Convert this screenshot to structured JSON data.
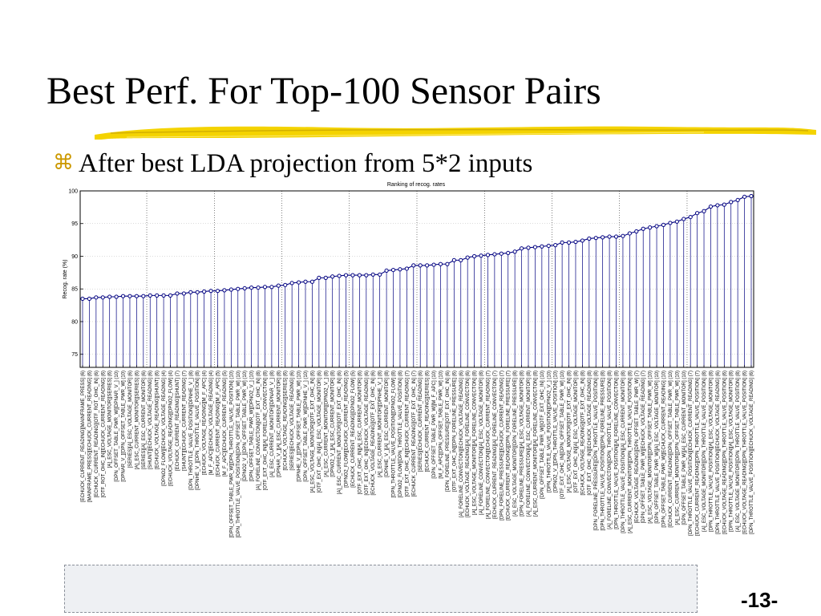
{
  "slide": {
    "title": "Best Perf. For Top-100 Sensor Pairs",
    "bullet": "After best LDA projection from 5*2 inputs",
    "bullet_icon": "command-key-icon",
    "page_number": "-13-",
    "accent_color": "#e8c400",
    "bullet_color": "#cc9900"
  },
  "chart_data": {
    "type": "line",
    "title": "Ranking of recog. rates",
    "xlabel": "",
    "ylabel": "Recog. rate (%)",
    "ylim": [
      73,
      100
    ],
    "yticks": [
      75,
      80,
      85,
      90,
      95,
      100
    ],
    "grid": true,
    "markers": "circle",
    "stems": true,
    "series_color": "#000080",
    "categories": [
      "[ECHUCK_CURRENT_READING][MAINFRAME_PRESS] (6)",
      "[MAINFRAME_PRESS][ECHUCK_CURRENT_READING] (6)",
      "[ECHUCK_CURRENT_READING][OTF_ROT_OHC_IN] (6)",
      "[OTF_ROT_OHC_IN][ECHUCK_CURRENT_READING] (6)",
      "[A]_ESC_VOLTAGE_MONITOR][SERIES] (6)",
      "[DPN_OFFSET_TABLE_PWR_W][DPNAR_V_] (10)",
      "[DPNAR_V_][DPN_OFFSET_TABLE_PWR_W] (10)",
      "[SERIES][A]_ESC_VOLTAGE_MONITOR] (6)",
      "[A]_ESC_CURRENT_MONITOR][SERIES] (6)",
      "[SERIES][A]_ESC_CURRENT_MONITOR] (6)",
      "[SHUNT][ECHUCK_VOLTAGE_READING] (6)",
      "[ECHUCK_VOLTAGE_READING][SHUNT] (6)",
      "[DPNO2_FLOW][ECHUCK_VOLTAGE_READING] (4)",
      "[ECHUCK_VOLTAGE_READING][DPNO2_FLOW] (4)",
      "[ECHUCK_CURRENT_READING][SHUNT] (7)",
      "[SHUNT][ECHUCK_CURRENT_READING] (7)",
      "[DPN_THROTTLE_VALVE_POSITION][DPNHE_V_] (8)",
      "[DPNHE_V_][DPN_THROTTLE_VALVE_POSITION] (8)",
      "[ECHUCK_VOLTAGE_READING][M_F_APC] (4)",
      "[M_F_APC][ECHUCK_VOLTAGE_READING] (4)",
      "[ECHUCK_CURRENT_READING][M_F_APC] (5)",
      "[M_F_APC][ECHUCK_CURRENT_READING] (5)",
      "[DPN_OFFSET_TABLE_PWR_W][DPN_THROTTLE_VALVE_POSITION] (10)",
      "[DPN_THROTTLE_VALVE_POSITION][DPN_OFFSET_TABLE_PWR_W] (10)",
      "[DPNO2_V_][DPN_OFFSET_TABLE_PWR_W] (10)",
      "[DPN_OFFSET_TABLE_PWR_W][DPNO2_V_] (10)",
      "[A]_FORELINE_CONVECTON][OTF_EXT_OHC_IN] (8)",
      "[OTF_EXT_OHC_IN][A]_FORELINE_CONVECTON] (8)",
      "[A]_ESC_CURRENT_MONITOR][DPNAR_V_] (8)",
      "[DPNAR_V_][A]_ESC_CURRENT_MONITOR] (8)",
      "[ECHUCK_VOLTAGE_READING][SERIES] (6)",
      "[SERIES][ECHUCK_VOLTAGE_READING] (6)",
      "[DPNHE_V_][DPN_OFFSET_TABLE_PWR_W] (10)",
      "[DPN_OFFSET_TABLE_PWR_W][DPNHE_V_] (10)",
      "[A]_ESC_VOLTAGE_MONITOR][OTF_EXT_OHC_IN] (6)",
      "[OTF_EXT_OHC_IN][A]_ESC_VOLTAGE_MONITOR] (6)",
      "[A]_ESC_CURRENT_MONITOR][DPNO2_V_] (8)",
      "[DPNO2_V_][A]_ESC_CURRENT_MONITOR] (8)",
      "[A]_ESC_CURRENT_MONITOR][OTF_EXT_OHC_IN] (6)",
      "[DPNO2_FLOW][ECHUCK_CURRENT_READING] (5)",
      "[ECHUCK_CURRENT_READING][DPNO2_FLOW] (5)",
      "[OTF_EXT_OHC_IN][A]_ESC_CURRENT_MONITOR] (6)",
      "[OTF_EXT_OHC_IN][ECHUCK_VOLTAGE_READING] (6)",
      "[ECHUCK_VOLTAGE_READING][OTF_EXT_OHC_IN] (6)",
      "[A]_ESC_CURRENT_MONITOR][DPNHE_V_] (8)",
      "[DPNHE_V_][A]_ESC_CURRENT_MONITOR] (8)",
      "[DPN_THROTTLE_VALVE_POSITION][DPNO2_FLOW] (8)",
      "[DPNO2_FLOW][DPN_THROTTLE_VALVE_POSITION] (8)",
      "[OTF_EXT_OHC_IN][ECHUCK_CURRENT_READING] (7)",
      "[ECHUCK_CURRENT_READING][OTF_EXT_OHC_IN] (7)",
      "[SERIES][ECHUCK_CURRENT_READING] (6)",
      "[ECHUCK_CURRENT_READING][SERIES] (6)",
      "[DPN_OFFSET_TABLE_PWR_W][M_F_APC] (10)",
      "[M_F_APC][DPN_OFFSET_TABLE_PWR_W] (10)",
      "[DPN_FORELINE_PRESSURE][OTF_EXT_OHC_IN] (6)",
      "[OTF_EXT_OHC_IN][DPN_FORELINE_PRESSURE] (6)",
      "[A]_FORELINE_CONVECTON][ECHUCK_VOLTAGE_READING] (6)",
      "[ECHUCK_VOLTAGE_READING][A]_FORELINE_CONVECTON] (6)",
      "[A]_ESC_VOLTAGE_MONITOR][A]_FORELINE_CONVECTON] (8)",
      "[A]_FORELINE_CONVECTON][A]_ESC_VOLTAGE_MONITOR] (8)",
      "[A]_FORELINE_CONVECTON][ECHUCK_CURRENT_READING] (7)",
      "[ECHUCK_CURRENT_READING][A]_FORELINE_CONVECTON] (7)",
      "[DPN_FORELINE_PRESSURE][ECHUCK_CURRENT_READING] (7)",
      "[ECHUCK_CURRENT_READING][DPN_FORELINE_PRESSURE] (7)",
      "[A]_ESC_VOLTAGE_MONITOR][DPN_FORELINE_PRESSURE] (8)",
      "[DPN_FORELINE_PRESSURE][A]_ESC_VOLTAGE_MONITOR] (8)",
      "[A]_FORELINE_CONVECTON][A]_ESC_CURRENT_MONITOR] (8)",
      "[A]_ESC_CURRENT_MONITOR][A]_FORELINE_CONVECTON] (8)",
      "[DPN_OFFSET_TABLE_PWR_W][OTF_EXT_OHC_IN] (10)",
      "[DPN_THROTTLE_VALVE_POSITION][DPNO2_V_] (10)",
      "[DPNO2_V_][DPN_THROTTLE_VALVE_POSITION] (10)",
      "[OTF_EXT_OHC_IN][DPN_OFFSET_TABLE_PWR_W] (10)",
      "[A]_ESC_VOLTAGE_MONITOR][OTF_EXT_OHC_IN] (8)",
      "[OTF_EXT_OHC_IN][A]_ESC_VOLTAGE_MONITOR] (8)",
      "[ECHUCK_VOLTAGE_READING][OTF_EXT_OHC_IN] (8)",
      "[OTF_EXT_OHC_IN][ECHUCK_VOLTAGE_READING] (8)",
      "[DPN_FORELINE_PRESSURE][DPN_THROTTLE_VALVE_POSITION] (8)",
      "[DPN_THROTTLE_VALVE_POSITION][DPN_FORELINE_PRESSURE] (8)",
      "[A]_FORELINE_CONVECTON][DPN_THROTTLE_VALVE_POSITION] (8)",
      "[DPN_THROTTLE_VALVE_POSITION][A]_FORELINE_CONVECTON] (8)",
      "[DPN_THROTTLE_VALVE_POSITION][A]_ESC_CURRENT_MONITOR] (8)",
      "[A]_ESC_CURRENT_MONITOR][DPN_THROTTLE_VALVE_POSITION] (8)",
      "[ECHUCK_VOLTAGE_READING][DPN_OFFSET_TABLE_PWR_W] (7)",
      "[DPN_OFFSET_TABLE_PWR_W][ECHUCK_VOLTAGE_READING] (7)",
      "[A]_ESC_VOLTAGE_MONITOR][DPN_OFFSET_TABLE_PWR_W] (10)",
      "[DPN_OFFSET_TABLE_PWR_W][A]_ESC_VOLTAGE_MONITOR] (10)",
      "[DPN_OFFSET_TABLE_PWR_W][ECHUCK_CURRENT_READING] (10)",
      "[ECHUCK_CURRENT_READING][DPN_OFFSET_TABLE_PWR_W] (10)",
      "[A]_ESC_CURRENT_MONITOR][DPN_OFFSET_TABLE_PWR_W] (10)",
      "[DPN_OFFSET_TABLE_PWR_W][A]_ESC_CURRENT_MONITOR] (10)",
      "[DPN_THROTTLE_VALVE_POSITION][ECHUCK_CURRENT_READING] (7)",
      "[ECHUCK_CURRENT_READING][DPN_THROTTLE_VALVE_POSITION] (7)",
      "[A]_ESC_VOLTAGE_MONITOR][DPN_THROTTLE_VALVE_POSITION] (8)",
      "[DPN_THROTTLE_VALVE_POSITION][A]_ESC_VOLTAGE_MONITOR] (8)",
      "[DPN_THROTTLE_VALVE_POSITION][ECHUCK_VOLTAGE_READING] (6)",
      "[ECHUCK_VOLTAGE_READING][DPN_THROTTLE_VALVE_POSITION] (6)",
      "[DPN_THROTTLE_VALVE_POSITION][A]_ESC_VOLTAGE_MONITOR] (8)",
      "[A]_ESC_VOLTAGE_MONITOR][DPN_THROTTLE_VALVE_POSITION] (8)",
      "[ECHUCK_VOLTAGE_READING][DPN_THROTTLE_VALVE_POSITION] (6)",
      "[DPN_THROTTLE_VALVE_POSITION][ECHUCK_VOLTAGE_READING] (6)"
    ],
    "values": [
      83.5,
      83.5,
      83.7,
      83.7,
      83.8,
      83.8,
      83.9,
      83.9,
      83.9,
      83.9,
      84.0,
      84.0,
      84.0,
      84.0,
      84.3,
      84.3,
      84.5,
      84.5,
      84.6,
      84.7,
      84.7,
      84.8,
      84.9,
      85.0,
      85.1,
      85.2,
      85.2,
      85.3,
      85.3,
      85.5,
      85.6,
      85.9,
      86.0,
      86.1,
      86.1,
      86.7,
      86.7,
      86.9,
      87.0,
      87.1,
      87.1,
      87.1,
      87.1,
      87.2,
      87.2,
      87.8,
      87.9,
      88.0,
      88.1,
      88.6,
      88.6,
      88.6,
      88.7,
      88.8,
      88.8,
      89.4,
      89.4,
      89.8,
      90.0,
      90.1,
      90.2,
      90.3,
      90.4,
      90.5,
      90.7,
      91.2,
      91.3,
      91.4,
      91.5,
      91.6,
      91.7,
      92.1,
      92.1,
      92.2,
      92.4,
      92.7,
      92.8,
      92.9,
      93.0,
      93.0,
      93.1,
      93.5,
      93.8,
      94.2,
      94.4,
      94.6,
      94.8,
      95.1,
      95.3,
      95.7,
      96.0,
      96.6,
      96.9,
      97.6,
      97.8,
      97.9,
      98.3,
      98.6,
      99.1,
      99.2
    ]
  }
}
